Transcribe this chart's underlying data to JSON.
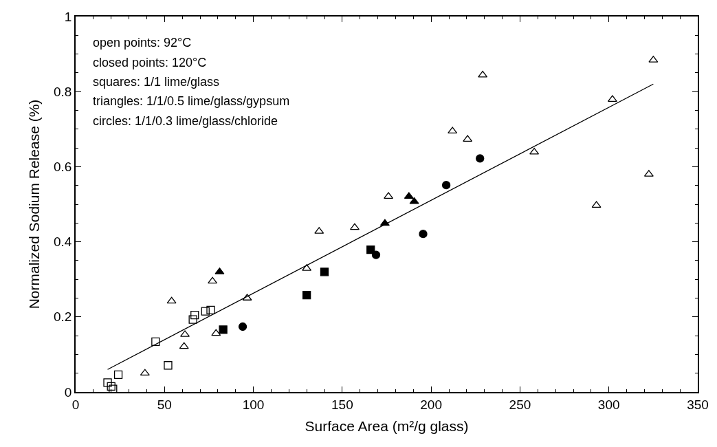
{
  "chart_data": {
    "type": "scatter",
    "xlabel": "Surface Area (m²/g glass)",
    "ylabel": "Normalized Sodium Release (%)",
    "annotations": [
      "open points: 92°C",
      "closed points: 120°C",
      "squares: 1/1 lime/glass",
      "triangles: 1/1/0.5 lime/glass/gypsum",
      "circles: 1/1/0.3 lime/glass/chloride"
    ],
    "xlim": [
      0,
      350
    ],
    "xticks": [
      0,
      50,
      100,
      150,
      200,
      250,
      300,
      350
    ],
    "ylim": [
      0,
      1
    ],
    "yticks": [
      0,
      0.2,
      0.4,
      0.6,
      0.8,
      1
    ],
    "series": [
      {
        "marker": "square-open",
        "color": "#000000",
        "x": [
          18,
          20,
          21,
          24,
          45,
          52,
          66,
          67,
          73,
          76
        ],
        "values": [
          0.025,
          0.015,
          0.008,
          0.046,
          0.134,
          0.071,
          0.193,
          0.205,
          0.215,
          0.218
        ]
      },
      {
        "marker": "square",
        "color": "#000000",
        "x": [
          83,
          130,
          140,
          166
        ],
        "values": [
          0.166,
          0.258,
          0.32,
          0.379
        ]
      },
      {
        "marker": "triangle-open",
        "color": "#000000",
        "x": [
          39,
          54,
          61,
          61.5,
          77,
          79,
          96.5,
          130,
          137,
          157,
          176,
          212,
          220.5,
          229,
          258,
          293,
          302,
          322.5,
          325
        ],
        "values": [
          0.05,
          0.242,
          0.121,
          0.153,
          0.295,
          0.156,
          0.25,
          0.329,
          0.428,
          0.438,
          0.521,
          0.695,
          0.673,
          0.844,
          0.639,
          0.497,
          0.779,
          0.58,
          0.884
        ]
      },
      {
        "marker": "triangle",
        "color": "#000000",
        "x": [
          81,
          174,
          187.5,
          190.5
        ],
        "values": [
          0.32,
          0.449,
          0.521,
          0.507
        ]
      },
      {
        "marker": "circle",
        "color": "#000000",
        "x": [
          94,
          169,
          195.5,
          208.5,
          227.5
        ],
        "values": [
          0.174,
          0.365,
          0.421,
          0.551,
          0.622
        ]
      },
      {
        "type": "line",
        "color": "#000000",
        "line_style": "solid",
        "x": [
          18,
          325
        ],
        "values": [
          0.06,
          0.82
        ]
      }
    ]
  }
}
